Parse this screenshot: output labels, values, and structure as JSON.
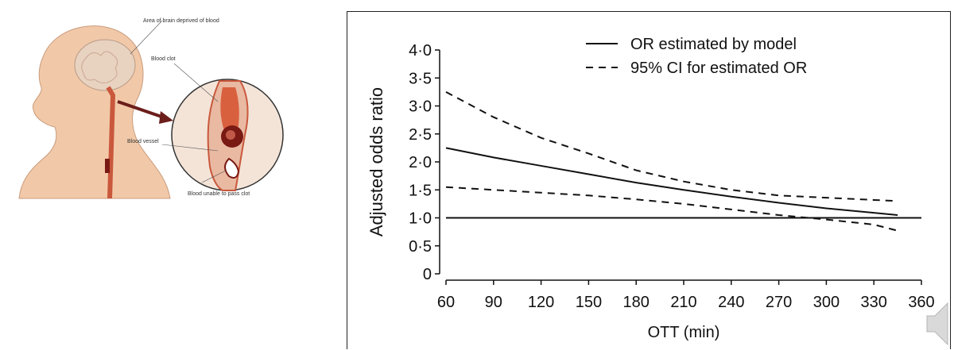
{
  "illustration": {
    "labels": {
      "area": "Area of brain deprived of blood",
      "clot": "Blood clot",
      "vessel": "Blood vessel",
      "unable": "Blood unable to pass clot"
    }
  },
  "chart_data": {
    "type": "line",
    "title": "",
    "xlabel": "OTT (min)",
    "ylabel": "Adjusted odds ratio",
    "xlim": [
      60,
      360
    ],
    "ylim": [
      0,
      4
    ],
    "x_ticks": [
      "60",
      "90",
      "120",
      "150",
      "180",
      "210",
      "240",
      "270",
      "300",
      "330",
      "360"
    ],
    "y_ticks": [
      "0",
      "0·5",
      "1·0",
      "1·5",
      "2·0",
      "2·5",
      "3·0",
      "3·5",
      "4·0"
    ],
    "legend_position": "top-right",
    "legend": [
      "OR estimated by model",
      "95% CI for estimated OR"
    ],
    "grid": false,
    "series": [
      {
        "name": "OR estimated by model",
        "style": "solid",
        "x": [
          60,
          90,
          120,
          150,
          180,
          210,
          240,
          270,
          300,
          330,
          345
        ],
        "y": [
          2.25,
          2.08,
          1.93,
          1.78,
          1.63,
          1.5,
          1.38,
          1.27,
          1.17,
          1.09,
          1.05
        ]
      },
      {
        "name": "95% CI for estimated OR",
        "style": "dashed",
        "x": [
          60,
          90,
          120,
          150,
          180,
          210,
          240,
          270,
          300,
          330,
          345
        ],
        "y": [
          3.25,
          2.8,
          2.43,
          2.15,
          1.85,
          1.65,
          1.5,
          1.4,
          1.36,
          1.32,
          1.3
        ]
      },
      {
        "name": "95% CI for estimated OR",
        "style": "dashed",
        "x": [
          60,
          90,
          120,
          150,
          180,
          210,
          240,
          270,
          300,
          330,
          345
        ],
        "y": [
          1.55,
          1.5,
          1.45,
          1.4,
          1.33,
          1.25,
          1.15,
          1.05,
          0.97,
          0.88,
          0.77
        ]
      }
    ],
    "reference_line": {
      "y": 1.0,
      "x": [
        60,
        360
      ],
      "style": "solid"
    }
  },
  "colors": {
    "line": "#111111",
    "skin": "#f2c9a8",
    "brain": "#e8d2c0",
    "vessel": "#c9583c",
    "clot": "#7a1a14",
    "arrow": "#6b1e1a",
    "speaker": "#d9d9d9"
  },
  "icons": {
    "speaker": "speaker-icon"
  }
}
